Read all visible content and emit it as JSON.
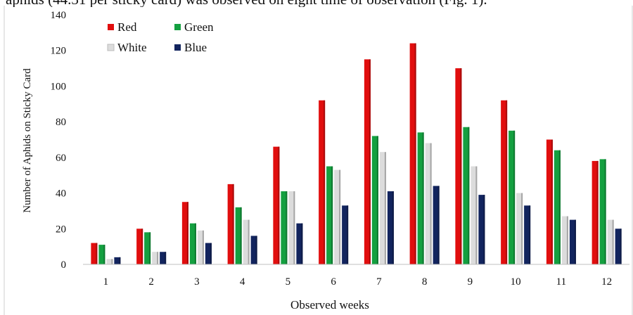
{
  "caption_fragment": "aphids (44.31 per sticky card) was observed on eight time of observation (Fig. 1).",
  "chart_data": {
    "type": "bar",
    "title": "",
    "xlabel": "Observed weeks",
    "ylabel": "Number of Aphids on Sticky Card",
    "ylim": [
      0,
      140
    ],
    "yticks": [
      0,
      20,
      40,
      60,
      80,
      100,
      120,
      140
    ],
    "grid": false,
    "legend_position": "top-left",
    "categories": [
      "1",
      "2",
      "3",
      "4",
      "5",
      "6",
      "7",
      "8",
      "9",
      "10",
      "11",
      "12"
    ],
    "series": [
      {
        "name": "Red",
        "color": "#e10e0e",
        "values": [
          12,
          20,
          35,
          45,
          66,
          92,
          115,
          124,
          110,
          92,
          70,
          58
        ]
      },
      {
        "name": "Green",
        "color": "#14a040",
        "values": [
          11,
          18,
          23,
          32,
          41,
          55,
          72,
          74,
          77,
          75,
          64,
          59
        ]
      },
      {
        "name": "White",
        "color": "#dcdcdc",
        "values": [
          3,
          7,
          19,
          25,
          41,
          53,
          63,
          68,
          55,
          40,
          27,
          25
        ]
      },
      {
        "name": "Blue",
        "color": "#12245e",
        "values": [
          4,
          7,
          12,
          16,
          23,
          33,
          41,
          44,
          39,
          33,
          25,
          20
        ]
      }
    ]
  }
}
